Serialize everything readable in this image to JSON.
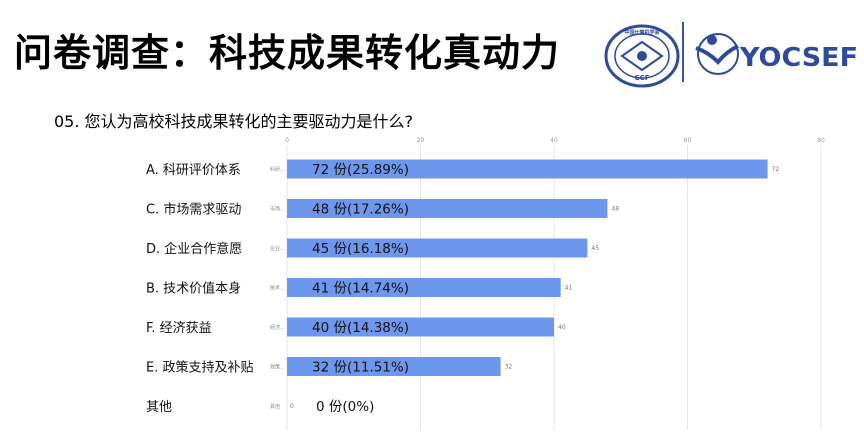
{
  "header": {
    "title": "问卷调查：科技成果转化真动力",
    "logo_ccf_text": "中国计算机学会",
    "logo_ccf_abbr": "CCF",
    "logo_ycsef_text": "YOCSEF"
  },
  "question": "05. 您认为高校科技成果转化的主要驱动力是什么?",
  "colors": {
    "bar": "#6d97ec",
    "grid": "#e6e6e6",
    "logo_blue": "#2e4a9b"
  },
  "chart_data": {
    "type": "bar",
    "orientation": "horizontal",
    "categories": [
      "A. 科研评价体系",
      "C. 市场需求驱动",
      "D. 企业合作意愿",
      "B. 技术价值本身",
      "F. 经济获益",
      "E. 政策支持及补贴",
      "其他"
    ],
    "short_labels": [
      "科研...",
      "市场...",
      "企业...",
      "技术...",
      "经济...",
      "政策...",
      "其他"
    ],
    "values": [
      72,
      48,
      45,
      41,
      40,
      32,
      0
    ],
    "bar_labels": [
      "72 份(25.89%)",
      "48 份(17.26%)",
      "45 份(16.18%)",
      "41 份(14.74%)",
      "40 份(14.38%)",
      "32 份(11.51%)",
      "0 份(0%)"
    ],
    "xlim": [
      0,
      80
    ],
    "xticks": [
      0,
      20,
      40,
      60,
      80
    ],
    "grid": true
  }
}
